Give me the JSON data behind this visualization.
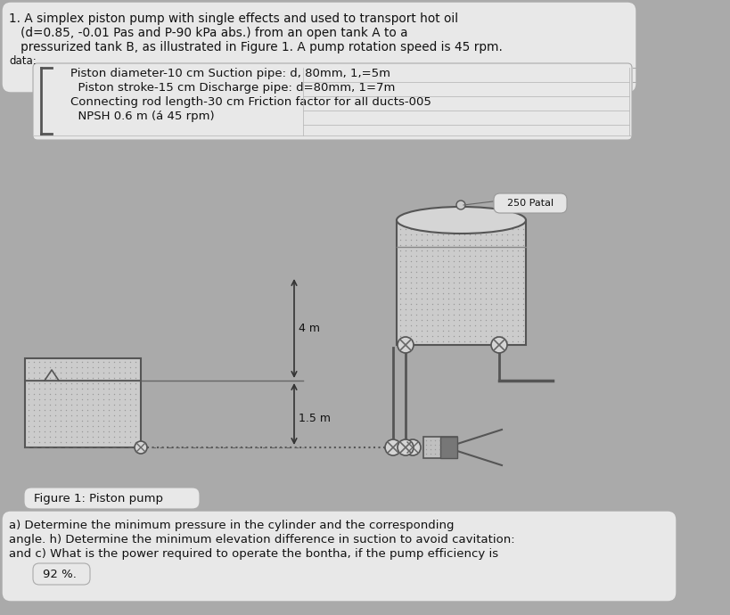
{
  "bg_color": "#aaaaaa",
  "title_box_text_line1": "1. A simplex piston pump with single effects and used to transport hot oil",
  "title_box_text_line2": "   (d=0.85, -0.01 Pas and P-90 kPa abs.) from an open tank A to a",
  "title_box_text_line3": "   pressurized tank B, as illustrated in Figure 1. A pump rotation speed is 45 rpm.",
  "title_box_text_line4": "data:",
  "data_box_line1": "    Piston diameter-10 cm Suction pipe: d, 80mm, 1,=5m",
  "data_box_line2": "      Piston stroke-15 cm Discharge pipe: d=80mm, 1=7m",
  "data_box_line3": "    Connecting rod length-30 cm Friction factor for all ducts-005",
  "data_box_line4": "      NPSH 0.6 m (á 45 rpm)",
  "label_250_patal": "250 Patal",
  "label_4m": "4 m",
  "label_15m": "1.5 m",
  "figure_caption": "Figure 1: Piston pump",
  "question_text_line1": "a) Determine the minimum pressure in the cylinder and the corresponding",
  "question_text_line2": "angle. h) Determine the minimum elevation difference in suction to avoid cavitation:",
  "question_text_line3": "and c) What is the power required to operate the bontha, if the pump efficiency is",
  "question_text_line4": "92 %.",
  "text_color": "#111111",
  "box_bg": "#e8e8e8",
  "pipe_color": "#444444",
  "dot_color": "#aaaaaa"
}
